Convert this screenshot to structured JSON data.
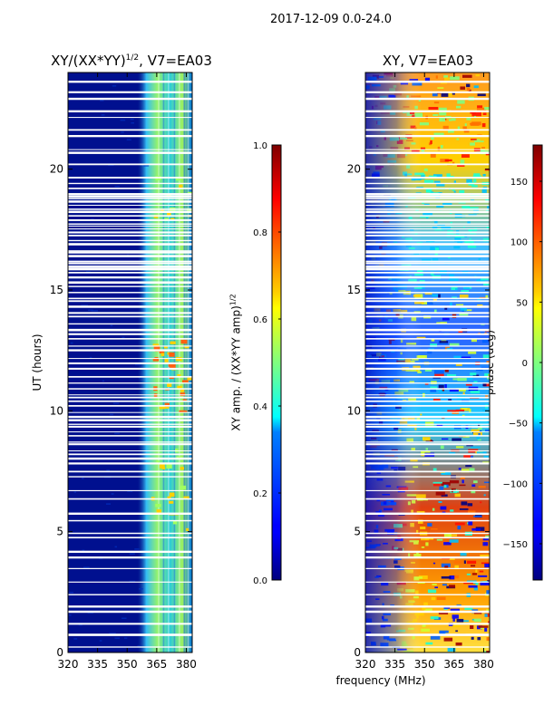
{
  "figure": {
    "suptitle": "2017-12-09 0.0-24.0",
    "xlabel": "frequency (MHz)"
  },
  "chart_data": [
    {
      "type": "heatmap",
      "title": "XY/(XX*YY)",
      "title_sup": "1/2",
      "title_suffix": ", V7=EA03",
      "xlabel": "",
      "ylabel": "UT (hours)",
      "x_ticks": [
        "320",
        "335",
        "350",
        "365",
        "380"
      ],
      "x_tick_values": [
        320,
        335,
        350,
        365,
        380
      ],
      "y_ticks": [
        "0",
        "5",
        "10",
        "15",
        "20"
      ],
      "y_tick_values": [
        0,
        5,
        10,
        15,
        20
      ],
      "xlim": [
        320,
        383
      ],
      "ylim": [
        0,
        24
      ],
      "colorbar": {
        "label": "XY amp. / (XX*YY amp)",
        "label_sup": "1/2",
        "range": [
          0.0,
          1.0
        ],
        "ticks": [
          "0.0",
          "0.2",
          "0.4",
          "0.6",
          "0.8",
          "1.0"
        ],
        "tick_values": [
          0.0,
          0.2,
          0.4,
          0.6,
          0.8,
          1.0
        ],
        "colormap": "jet"
      }
    },
    {
      "type": "heatmap",
      "title": "XY, V7=EA03",
      "xlabel": "frequency (MHz)",
      "ylabel": "",
      "x_ticks": [
        "320",
        "335",
        "350",
        "365",
        "380"
      ],
      "x_tick_values": [
        320,
        335,
        350,
        365,
        380
      ],
      "y_ticks": [
        "0",
        "5",
        "10",
        "15",
        "20"
      ],
      "y_tick_values": [
        0,
        5,
        10,
        15,
        20
      ],
      "xlim": [
        320,
        383
      ],
      "ylim": [
        0,
        24
      ],
      "colorbar": {
        "label": "phase (deg)",
        "range": [
          -180,
          180
        ],
        "ticks": [
          "−150",
          "−100",
          "−50",
          "0",
          "50",
          "100",
          "150"
        ],
        "tick_values": [
          -150,
          -100,
          -50,
          0,
          50,
          100,
          150
        ],
        "colormap": "jet"
      }
    }
  ],
  "colors": {
    "jet_low": "#00007f",
    "jet_high": "#7f0000",
    "gap": "#ffffff",
    "axis": "#000000"
  }
}
